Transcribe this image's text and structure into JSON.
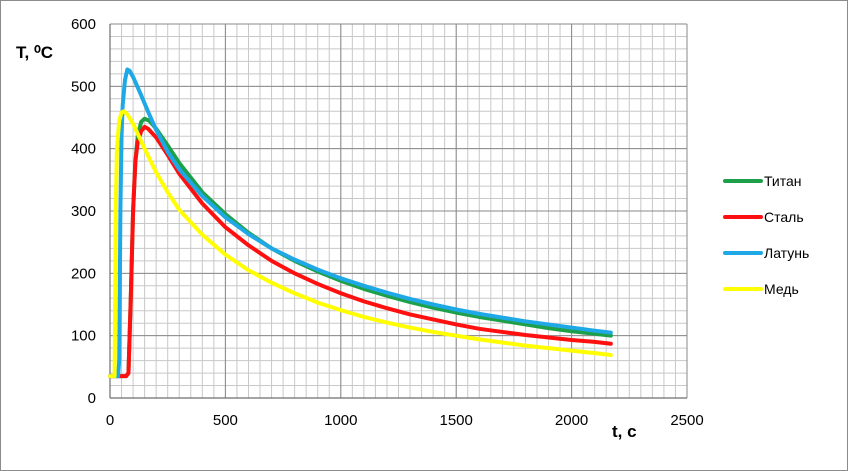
{
  "chart_data": {
    "type": "line",
    "title": "",
    "xlabel": "t, с",
    "ylabel": "T, ⁰C",
    "xlim": [
      0,
      2500
    ],
    "ylim": [
      0,
      600
    ],
    "x_ticks": [
      0,
      500,
      1000,
      1500,
      2000,
      2500
    ],
    "y_ticks": [
      0,
      100,
      200,
      300,
      400,
      500,
      600
    ],
    "x_minor_step": 50,
    "y_minor_step": 20,
    "grid": true,
    "legend_position": "right",
    "series": [
      {
        "name": "Титан",
        "color": "#1ea04b",
        "points": [
          [
            0,
            35
          ],
          [
            50,
            35
          ],
          [
            70,
            35
          ],
          [
            80,
            40
          ],
          [
            90,
            160
          ],
          [
            100,
            300
          ],
          [
            110,
            380
          ],
          [
            120,
            420
          ],
          [
            135,
            443
          ],
          [
            150,
            448
          ],
          [
            170,
            445
          ],
          [
            200,
            432
          ],
          [
            250,
            405
          ],
          [
            300,
            377
          ],
          [
            400,
            330
          ],
          [
            500,
            295
          ],
          [
            600,
            265
          ],
          [
            700,
            240
          ],
          [
            800,
            220
          ],
          [
            900,
            203
          ],
          [
            1000,
            188
          ],
          [
            1100,
            175
          ],
          [
            1200,
            164
          ],
          [
            1300,
            154
          ],
          [
            1400,
            145
          ],
          [
            1500,
            137
          ],
          [
            1600,
            130
          ],
          [
            1700,
            124
          ],
          [
            1800,
            118
          ],
          [
            1900,
            112
          ],
          [
            2000,
            107
          ],
          [
            2100,
            103
          ],
          [
            2170,
            100
          ]
        ]
      },
      {
        "name": "Сталь",
        "color": "#ff1010",
        "points": [
          [
            0,
            35
          ],
          [
            50,
            35
          ],
          [
            70,
            35
          ],
          [
            80,
            40
          ],
          [
            90,
            160
          ],
          [
            100,
            300
          ],
          [
            110,
            380
          ],
          [
            120,
            410
          ],
          [
            135,
            428
          ],
          [
            150,
            435
          ],
          [
            165,
            432
          ],
          [
            200,
            418
          ],
          [
            250,
            390
          ],
          [
            300,
            360
          ],
          [
            400,
            312
          ],
          [
            500,
            274
          ],
          [
            600,
            245
          ],
          [
            700,
            220
          ],
          [
            800,
            200
          ],
          [
            900,
            183
          ],
          [
            1000,
            168
          ],
          [
            1100,
            155
          ],
          [
            1200,
            144
          ],
          [
            1300,
            134
          ],
          [
            1400,
            126
          ],
          [
            1500,
            118
          ],
          [
            1600,
            111
          ],
          [
            1700,
            106
          ],
          [
            1800,
            101
          ],
          [
            1900,
            97
          ],
          [
            2000,
            93
          ],
          [
            2100,
            90
          ],
          [
            2170,
            87
          ]
        ]
      },
      {
        "name": "Латунь",
        "color": "#1ea8e6",
        "points": [
          [
            0,
            35
          ],
          [
            35,
            35
          ],
          [
            40,
            60
          ],
          [
            45,
            300
          ],
          [
            50,
            420
          ],
          [
            55,
            470
          ],
          [
            65,
            510
          ],
          [
            75,
            527
          ],
          [
            85,
            525
          ],
          [
            100,
            515
          ],
          [
            130,
            490
          ],
          [
            170,
            455
          ],
          [
            200,
            430
          ],
          [
            250,
            395
          ],
          [
            300,
            367
          ],
          [
            400,
            324
          ],
          [
            500,
            290
          ],
          [
            600,
            263
          ],
          [
            700,
            240
          ],
          [
            800,
            222
          ],
          [
            900,
            206
          ],
          [
            1000,
            192
          ],
          [
            1100,
            180
          ],
          [
            1200,
            169
          ],
          [
            1300,
            159
          ],
          [
            1400,
            150
          ],
          [
            1500,
            142
          ],
          [
            1600,
            135
          ],
          [
            1700,
            129
          ],
          [
            1800,
            123
          ],
          [
            1900,
            118
          ],
          [
            2000,
            113
          ],
          [
            2100,
            108
          ],
          [
            2170,
            105
          ]
        ]
      },
      {
        "name": "Медь",
        "color": "#ffff00",
        "points": [
          [
            0,
            35
          ],
          [
            20,
            35
          ],
          [
            25,
            300
          ],
          [
            30,
            400
          ],
          [
            40,
            445
          ],
          [
            50,
            458
          ],
          [
            60,
            460
          ],
          [
            75,
            455
          ],
          [
            100,
            440
          ],
          [
            150,
            400
          ],
          [
            200,
            362
          ],
          [
            250,
            330
          ],
          [
            300,
            302
          ],
          [
            400,
            262
          ],
          [
            500,
            230
          ],
          [
            600,
            205
          ],
          [
            700,
            185
          ],
          [
            800,
            168
          ],
          [
            900,
            153
          ],
          [
            1000,
            141
          ],
          [
            1100,
            130
          ],
          [
            1200,
            121
          ],
          [
            1300,
            113
          ],
          [
            1400,
            106
          ],
          [
            1500,
            100
          ],
          [
            1600,
            94
          ],
          [
            1700,
            89
          ],
          [
            1800,
            84
          ],
          [
            1900,
            80
          ],
          [
            2000,
            76
          ],
          [
            2100,
            72
          ],
          [
            2170,
            69
          ]
        ]
      }
    ]
  }
}
